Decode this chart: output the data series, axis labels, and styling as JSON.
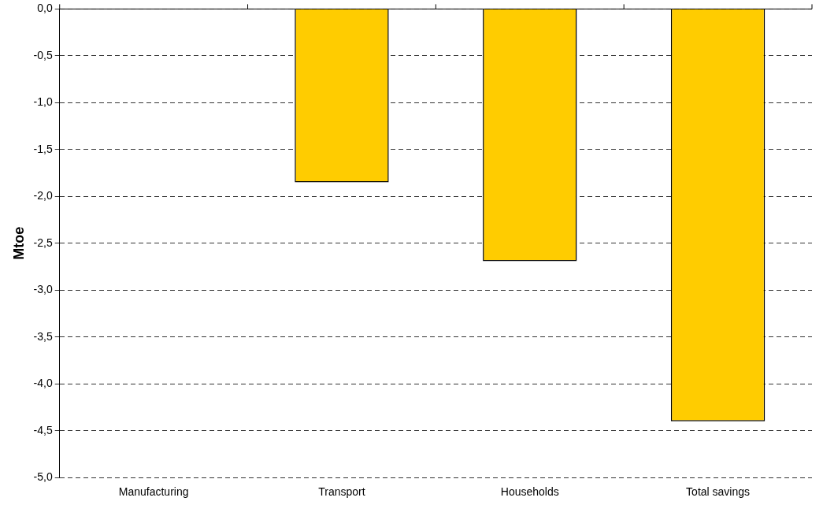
{
  "chart_data": {
    "type": "bar",
    "ylabel": "Mtoe",
    "categories": [
      "Manufacturing",
      "Transport",
      "Households",
      "Total savings"
    ],
    "values": [
      0,
      -1.85,
      -2.69,
      -4.4
    ],
    "color": "#ffcc00",
    "ylim": [
      -5,
      0
    ],
    "yticks": [
      {
        "value": -5,
        "label": "-5,0"
      },
      {
        "value": -4.5,
        "label": "-4,5"
      },
      {
        "value": -4,
        "label": "-4,0"
      },
      {
        "value": -3.5,
        "label": "-3,5"
      },
      {
        "value": -3,
        "label": "-3,0"
      },
      {
        "value": -2.5,
        "label": "-2,5"
      },
      {
        "value": -2,
        "label": "-2,0"
      },
      {
        "value": -1.5,
        "label": "-1,5"
      },
      {
        "value": -1,
        "label": "-1,0"
      },
      {
        "value": -0.5,
        "label": "-0,5"
      },
      {
        "value": 0,
        "label": "0,0"
      }
    ],
    "grid": "y",
    "legend": false
  }
}
